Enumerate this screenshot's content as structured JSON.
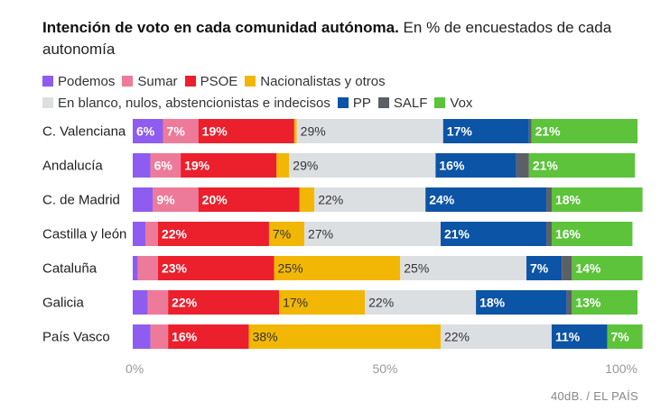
{
  "header": {
    "title_bold": "Intención de voto en cada comunidad autónoma.",
    "title_rest": " En % de encuestados de cada autonomía"
  },
  "legend": [
    {
      "name": "Podemos",
      "color": "#8e5cf0"
    },
    {
      "name": "Sumar",
      "color": "#ee7a9a"
    },
    {
      "name": "PSOE",
      "color": "#ec1f2d"
    },
    {
      "name": "Nacionalistas y otros",
      "color": "#f2b705"
    },
    {
      "name": "En blanco, nulos, abstencionistas e indecisos",
      "color": "#dcdfe2"
    },
    {
      "name": "PP",
      "color": "#0c54a6"
    },
    {
      "name": "SALF",
      "color": "#5c6066"
    },
    {
      "name": "Vox",
      "color": "#5cc33b"
    }
  ],
  "chart_data": {
    "type": "bar",
    "orientation": "horizontal",
    "stacked": true,
    "categories": [
      "C. Valenciana",
      "Andalucía",
      "C. de Madrid",
      "Castilla y león",
      "Cataluña",
      "Galicia",
      "País Vasco"
    ],
    "series": [
      {
        "name": "Podemos",
        "color": "#8e5cf0",
        "values": [
          6,
          3.5,
          4,
          2.5,
          1,
          3,
          3.5
        ],
        "labels": [
          "6%",
          "",
          "",
          "",
          "",
          "",
          ""
        ]
      },
      {
        "name": "Sumar",
        "color": "#ee7a9a",
        "values": [
          7,
          6,
          9,
          2.5,
          4,
          4,
          3.5
        ],
        "labels": [
          "7%",
          "6%",
          "9%",
          "",
          "",
          "",
          ""
        ]
      },
      {
        "name": "PSOE",
        "color": "#ec1f2d",
        "values": [
          19,
          19,
          20,
          22,
          23,
          22,
          16
        ],
        "labels": [
          "19%",
          "19%",
          "20%",
          "22%",
          "23%",
          "22%",
          "16%"
        ]
      },
      {
        "name": "Nacionalistas y otros",
        "color": "#f2b705",
        "values": [
          0.5,
          2.5,
          3,
          7,
          25,
          17,
          38
        ],
        "labels": [
          "",
          "",
          "",
          "7%",
          "25%",
          "17%",
          "38%"
        ]
      },
      {
        "name": "En blanco, nulos, abstencionistas e indecisos",
        "color": "#dcdfe2",
        "values": [
          29,
          29,
          22,
          27,
          25,
          22,
          22
        ],
        "labels": [
          "29%",
          "29%",
          "22%",
          "27%",
          "25%",
          "22%",
          "22%"
        ]
      },
      {
        "name": "PP",
        "color": "#0c54a6",
        "values": [
          17,
          16,
          24,
          21,
          7,
          18,
          11
        ],
        "labels": [
          "17%",
          "16%",
          "24%",
          "21%",
          "7%",
          "18%",
          "11%"
        ]
      },
      {
        "name": "SALF",
        "color": "#5c6066",
        "values": [
          0.5,
          2.5,
          1,
          1,
          2,
          1,
          0
        ],
        "labels": [
          "",
          "",
          "",
          "",
          "",
          "",
          ""
        ]
      },
      {
        "name": "Vox",
        "color": "#5cc33b",
        "values": [
          21,
          21,
          18,
          16,
          14,
          13,
          7
        ],
        "labels": [
          "21%",
          "21%",
          "18%",
          "16%",
          "14%",
          "13%",
          "7%"
        ]
      }
    ],
    "xlim": [
      0,
      100
    ],
    "xticks": [
      "0%",
      "50%",
      "100%"
    ],
    "dark_label_series": [
      "Nacionalistas y otros",
      "En blanco, nulos, abstencionistas e indecisos"
    ]
  },
  "footer": {
    "source": "40dB. / EL PAÍS"
  }
}
